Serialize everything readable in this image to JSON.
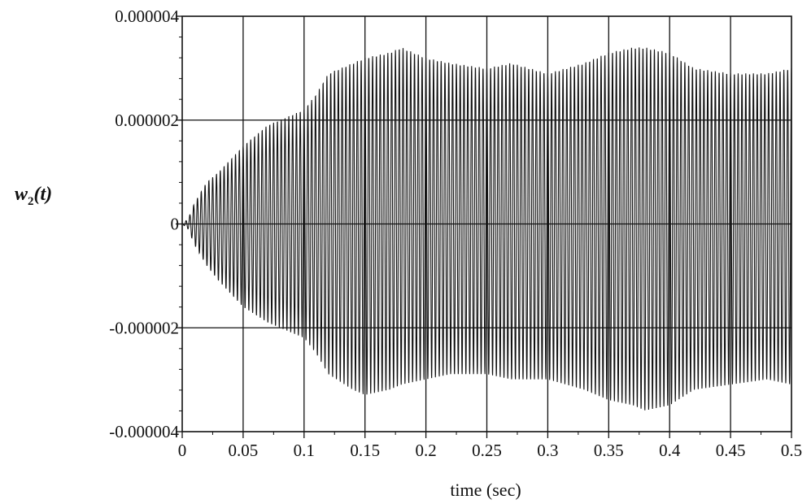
{
  "chart_data": {
    "type": "line",
    "title": "",
    "xlabel": "time (sec)",
    "ylabel": {
      "base": "w",
      "subscript": "2",
      "suffix": "(t)"
    },
    "xlim": [
      0,
      0.5
    ],
    "ylim": [
      -4e-06,
      4e-06
    ],
    "grid": true,
    "x_ticks": [
      0,
      0.05,
      0.1,
      0.15,
      0.2,
      0.25,
      0.3,
      0.35,
      0.4,
      0.45,
      0.5
    ],
    "x_tick_labels": [
      "0",
      "0.05",
      "0.1",
      "0.15",
      "0.2",
      "0.25",
      "0.3",
      "0.35",
      "0.4",
      "0.45",
      "0.5"
    ],
    "y_ticks": [
      -4e-06,
      -2e-06,
      0,
      2e-06,
      4e-06
    ],
    "y_tick_labels": [
      "-0.000004",
      "-0.000002",
      "0",
      "0.000002",
      "0.000004"
    ],
    "series": [
      {
        "color": "#111111",
        "oscillation_cycles_per_sec": 320,
        "envelope_upper": {
          "x": [
            0,
            0.005,
            0.01,
            0.02,
            0.03,
            0.05,
            0.07,
            0.09,
            0.1,
            0.11,
            0.12,
            0.14,
            0.15,
            0.17,
            0.18,
            0.2,
            0.22,
            0.25,
            0.27,
            0.3,
            0.33,
            0.35,
            0.37,
            0.38,
            0.4,
            0.42,
            0.45,
            0.48,
            0.5
          ],
          "y": [
            0,
            1e-07,
            4e-07,
            8e-07,
            1e-06,
            1.5e-06,
            1.9e-06,
            2.1e-06,
            2.2e-06,
            2.5e-06,
            2.9e-06,
            3.1e-06,
            3.2e-06,
            3.3e-06,
            3.4e-06,
            3.2e-06,
            3.1e-06,
            3e-06,
            3.1e-06,
            2.9e-06,
            3.1e-06,
            3.3e-06,
            3.4e-06,
            3.4e-06,
            3.3e-06,
            3e-06,
            2.9e-06,
            2.9e-06,
            3e-06
          ]
        },
        "envelope_lower": {
          "x": [
            0,
            0.005,
            0.01,
            0.02,
            0.03,
            0.05,
            0.07,
            0.09,
            0.1,
            0.11,
            0.12,
            0.14,
            0.15,
            0.17,
            0.18,
            0.2,
            0.22,
            0.25,
            0.27,
            0.3,
            0.33,
            0.35,
            0.37,
            0.38,
            0.4,
            0.42,
            0.45,
            0.48,
            0.5
          ],
          "y": [
            0,
            -1e-07,
            -4e-07,
            -8e-07,
            -1.1e-06,
            -1.6e-06,
            -1.9e-06,
            -2.1e-06,
            -2.2e-06,
            -2.5e-06,
            -2.9e-06,
            -3.2e-06,
            -3.3e-06,
            -3.2e-06,
            -3.1e-06,
            -3e-06,
            -2.9e-06,
            -2.9e-06,
            -3e-06,
            -3e-06,
            -3.2e-06,
            -3.4e-06,
            -3.5e-06,
            -3.6e-06,
            -3.5e-06,
            -3.2e-06,
            -3.1e-06,
            -3e-06,
            -3.1e-06
          ]
        }
      }
    ]
  }
}
